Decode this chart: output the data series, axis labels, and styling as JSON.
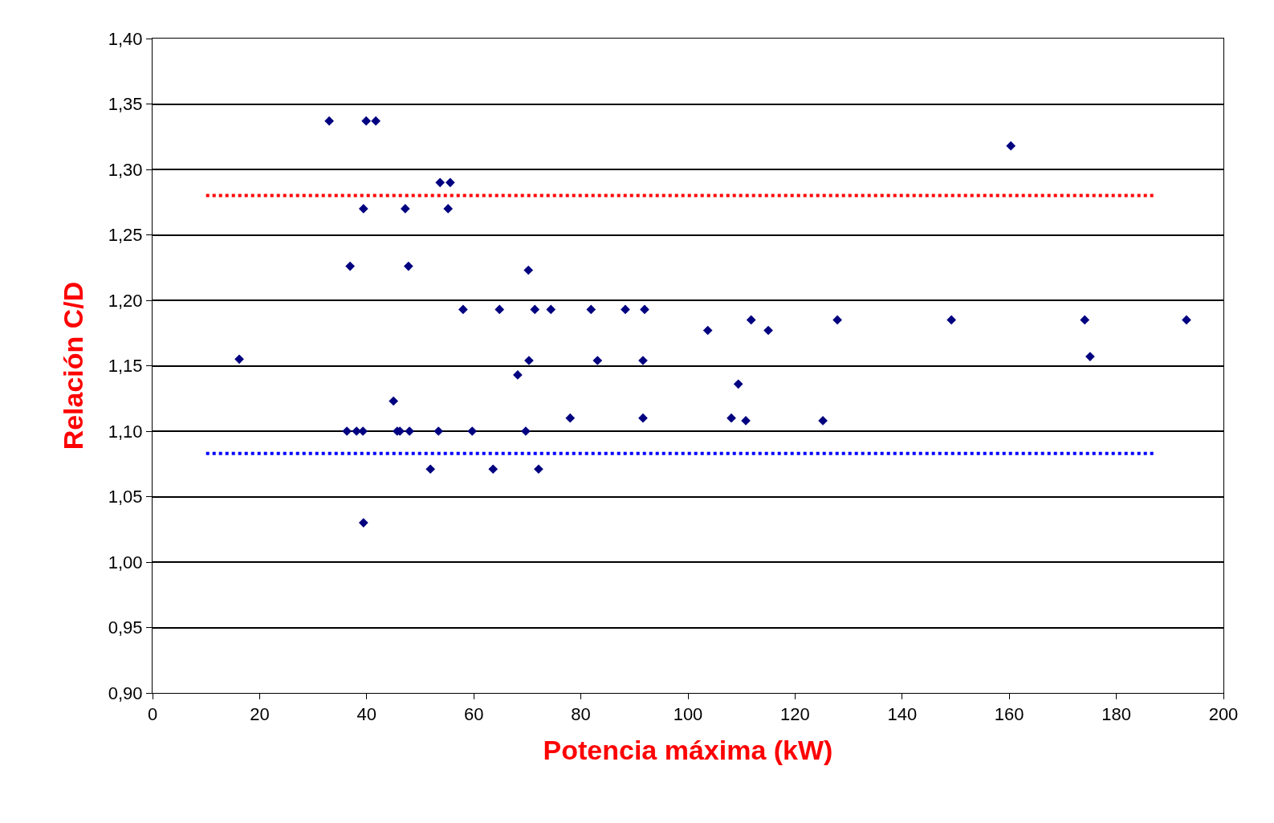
{
  "chart_data": {
    "type": "scatter",
    "xlabel": "Potencia máxima (kW)",
    "ylabel": "Relación C/D",
    "xlim": [
      0,
      200
    ],
    "xticks": [
      0,
      20,
      40,
      60,
      80,
      100,
      120,
      140,
      160,
      180,
      200
    ],
    "ylim": [
      0.9,
      1.4
    ],
    "yticks": [
      {
        "value": 0.9,
        "label": "0,90"
      },
      {
        "value": 0.95,
        "label": "0,95"
      },
      {
        "value": 1.0,
        "label": "1,00"
      },
      {
        "value": 1.05,
        "label": "1,05"
      },
      {
        "value": 1.1,
        "label": "1,10"
      },
      {
        "value": 1.15,
        "label": "1,15"
      },
      {
        "value": 1.2,
        "label": "1,20"
      },
      {
        "value": 1.25,
        "label": "1,25"
      },
      {
        "value": 1.3,
        "label": "1,30"
      },
      {
        "value": 1.35,
        "label": "1,35"
      },
      {
        "value": 1.4,
        "label": "1,40"
      }
    ],
    "grid": "y",
    "series": [
      {
        "marker": "diamond",
        "color": "#000080",
        "x": [
          16.2,
          33.0,
          39.9,
          41.7,
          53.7,
          55.6,
          39.4,
          47.2,
          55.2,
          36.9,
          47.8,
          70.2,
          58.0,
          64.8,
          71.4,
          74.4,
          81.9,
          88.3,
          91.9,
          103.7,
          111.8,
          115.0,
          127.9,
          149.2,
          160.3,
          174.1,
          175.1,
          193.1,
          70.3,
          83.1,
          91.6,
          68.2,
          109.4,
          45.0,
          36.3,
          38.1,
          39.3,
          45.7,
          46.2,
          48.0,
          53.4,
          59.7,
          69.7,
          78.0,
          91.6,
          108.1,
          110.8,
          125.2,
          51.9,
          63.6,
          72.1,
          39.4
        ],
        "values": [
          1.155,
          1.337,
          1.337,
          1.337,
          1.29,
          1.29,
          1.27,
          1.27,
          1.27,
          1.226,
          1.226,
          1.223,
          1.193,
          1.193,
          1.193,
          1.193,
          1.193,
          1.193,
          1.193,
          1.177,
          1.185,
          1.177,
          1.185,
          1.185,
          1.318,
          1.185,
          1.157,
          1.185,
          1.154,
          1.154,
          1.154,
          1.143,
          1.136,
          1.123,
          1.1,
          1.1,
          1.1,
          1.1,
          1.1,
          1.1,
          1.1,
          1.1,
          1.1,
          1.11,
          1.11,
          1.11,
          1.108,
          1.108,
          1.071,
          1.071,
          1.071,
          1.03
        ]
      },
      {
        "type": "line",
        "color": "#ff0000",
        "line_style": "dotted",
        "x": [
          10,
          187
        ],
        "values": [
          1.28,
          1.28
        ]
      },
      {
        "type": "line",
        "color": "#0000ff",
        "line_style": "dotted",
        "x": [
          10,
          187
        ],
        "values": [
          1.083,
          1.083
        ]
      }
    ]
  }
}
